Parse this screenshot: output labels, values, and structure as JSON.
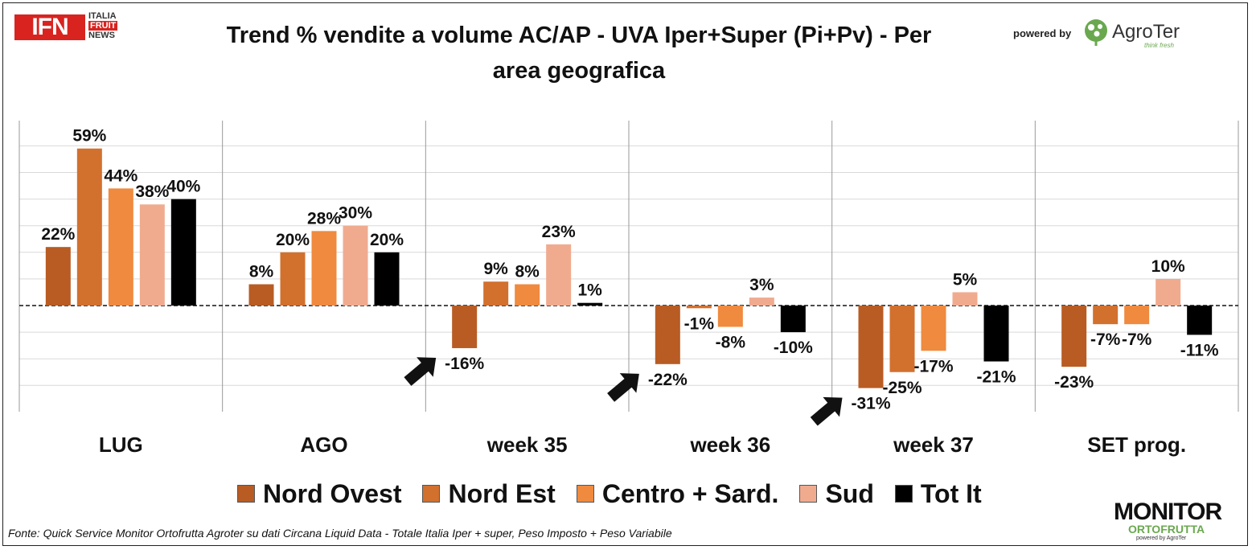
{
  "header": {
    "title_line1": "Trend % vendite a volume AC/AP - UVA  Iper+Super (Pi+Pv) - Per",
    "title_line2": "area geografica",
    "powered_by": "powered by",
    "ifn_logo": {
      "mark": "IFN",
      "line1": "ITALIA",
      "line2": "FRUIT",
      "line3": "NEWS"
    },
    "agroter_logo": {
      "name": "AgroTer",
      "tagline": "think fresh"
    }
  },
  "footer": {
    "source": "Fonte: Quick Service Monitor Ortofrutta Agroter su dati Circana Liquid Data - Totale Italia Iper + super, Peso Imposto + Peso Variabile",
    "monitor_logo": {
      "line1": "MONITOR",
      "line2": "ORTOFRUTTA",
      "line3": "powered by AgroTer"
    }
  },
  "chart_data": {
    "type": "bar",
    "title": "Trend % vendite a volume AC/AP - UVA  Iper+Super (Pi+Pv) - Per area geografica",
    "categories": [
      "LUG",
      "AGO",
      "week 35",
      "week 36",
      "week 37",
      "SET prog."
    ],
    "series": [
      {
        "name": "Nord Ovest",
        "color": "#b85c24",
        "values": [
          22,
          8,
          -16,
          -22,
          -31,
          -23
        ]
      },
      {
        "name": "Nord Est",
        "color": "#d2702e",
        "values": [
          59,
          20,
          9,
          -1,
          -25,
          -7
        ]
      },
      {
        "name": "Centro + Sard.",
        "color": "#ef8a3f",
        "values": [
          44,
          28,
          8,
          -8,
          -17,
          -7
        ]
      },
      {
        "name": "Sud",
        "color": "#f0ab8f",
        "values": [
          38,
          30,
          23,
          3,
          5,
          10
        ]
      },
      {
        "name": "Tot It",
        "color": "#000000",
        "values": [
          40,
          20,
          1,
          -10,
          -21,
          -11
        ]
      }
    ],
    "data_labels": [
      [
        "22%",
        "8%",
        "-16%",
        "-22%",
        "-31%",
        "-23%"
      ],
      [
        "59%",
        "20%",
        "9%",
        "-1%",
        "-25%",
        "-7%"
      ],
      [
        "44%",
        "28%",
        "8%",
        "-8%",
        "-17%",
        "-7%"
      ],
      [
        "38%",
        "30%",
        "23%",
        "3%",
        "5%",
        "10%"
      ],
      [
        "40%",
        "20%",
        "1%",
        "-10%",
        "-21%",
        "-11%"
      ]
    ],
    "ylim": [
      -40,
      70
    ],
    "grid": true,
    "zero_line": "dashed",
    "legend_position": "bottom",
    "arrows_at_categories": [
      "week 35",
      "week 36",
      "week 37"
    ]
  }
}
